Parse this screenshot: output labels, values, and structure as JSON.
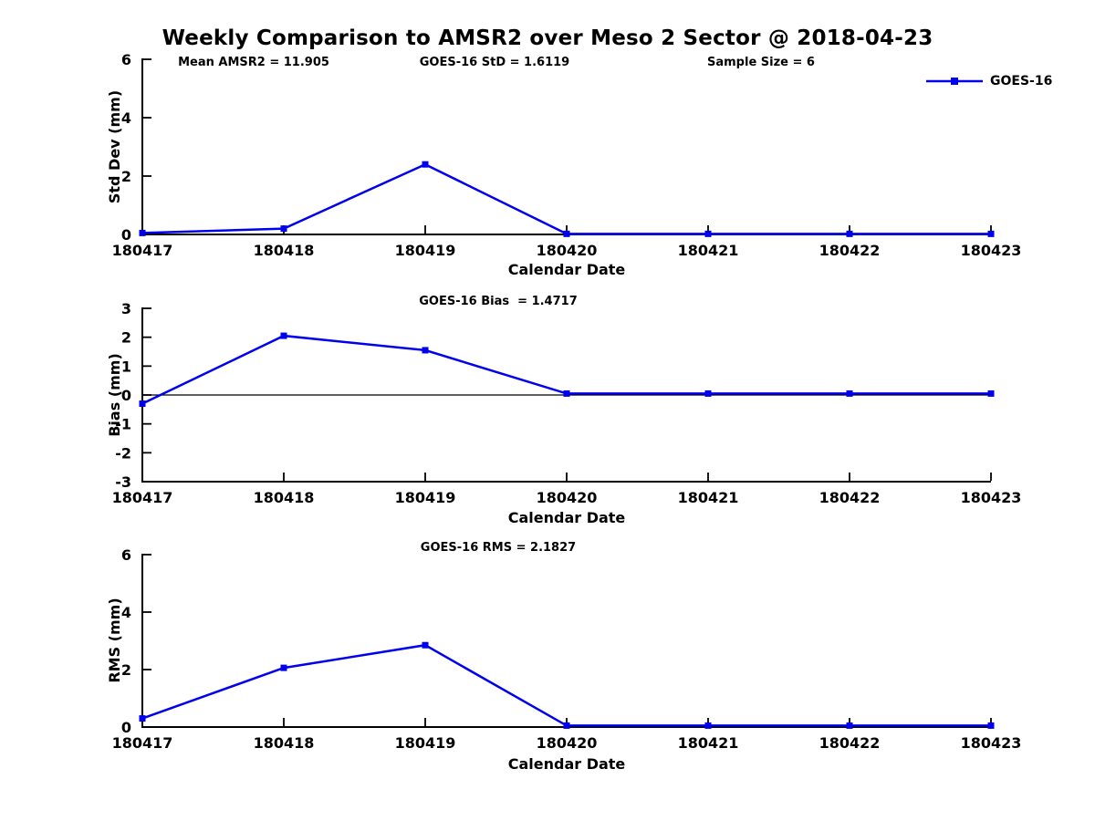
{
  "title": "Weekly Comparison to AMSR2 over Meso 2 Sector @ 2018-04-23",
  "colors": {
    "line": "#0000ee",
    "axis": "#000000",
    "text": "#000000",
    "background": "#ffffff"
  },
  "legend": {
    "label": "GOES-16"
  },
  "chart_data": [
    {
      "type": "line",
      "id": "std-dev",
      "annotations": [
        "Mean AMSR2 = 11.905",
        "GOES-16 StD = 1.6119",
        "Sample Size = 6"
      ],
      "categories": [
        "180417",
        "180418",
        "180419",
        "180420",
        "180421",
        "180422",
        "180423"
      ],
      "series": [
        {
          "name": "GOES-16",
          "values": [
            0.05,
            0.2,
            2.4,
            0.02,
            0.02,
            0.02,
            0.02
          ]
        }
      ],
      "ylabel": "Std Dev (mm)",
      "xlabel": "Calendar Date",
      "ylim": [
        0,
        6
      ],
      "yticks": [
        0,
        2,
        4,
        6
      ],
      "grid": false,
      "zero_line": false,
      "legend_position": "upper-right"
    },
    {
      "type": "line",
      "id": "bias",
      "title": "GOES-16 Bias  = 1.4717",
      "categories": [
        "180417",
        "180418",
        "180419",
        "180420",
        "180421",
        "180422",
        "180423"
      ],
      "series": [
        {
          "name": "GOES-16",
          "values": [
            -0.3,
            2.05,
            1.55,
            0.05,
            0.05,
            0.05,
            0.05
          ]
        }
      ],
      "ylabel": "Bias (mm)",
      "xlabel": "Calendar Date",
      "ylim": [
        -3,
        3
      ],
      "yticks": [
        -3,
        -2,
        -1,
        0,
        1,
        2,
        3
      ],
      "grid": false,
      "zero_line": true
    },
    {
      "type": "line",
      "id": "rms",
      "title": "GOES-16 RMS = 2.1827",
      "categories": [
        "180417",
        "180418",
        "180419",
        "180420",
        "180421",
        "180422",
        "180423"
      ],
      "series": [
        {
          "name": "GOES-16",
          "values": [
            0.3,
            2.06,
            2.85,
            0.05,
            0.05,
            0.05,
            0.05
          ]
        }
      ],
      "ylabel": "RMS (mm)",
      "xlabel": "Calendar Date",
      "ylim": [
        0,
        6
      ],
      "yticks": [
        0,
        2,
        4,
        6
      ],
      "grid": false,
      "zero_line": false
    }
  ]
}
